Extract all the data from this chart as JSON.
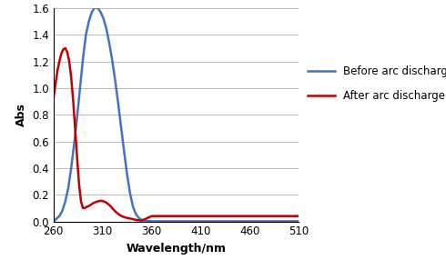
{
  "title": "",
  "xlabel": "Wavelength/nm",
  "ylabel": "Abs",
  "xlim": [
    260,
    510
  ],
  "ylim": [
    0,
    1.6
  ],
  "yticks": [
    0,
    0.2,
    0.4,
    0.6,
    0.8,
    1.0,
    1.2,
    1.4,
    1.6
  ],
  "xticks": [
    260,
    310,
    360,
    410,
    460,
    510
  ],
  "blue_color": "#4472C4",
  "red_color": "#C00000",
  "legend": [
    "Before arc discharge",
    "After arc discharge"
  ],
  "blue_x": [
    260,
    263,
    266,
    269,
    272,
    275,
    278,
    281,
    284,
    287,
    290,
    293,
    296,
    299,
    302,
    305,
    308,
    311,
    314,
    317,
    320,
    323,
    326,
    329,
    332,
    335,
    338,
    341,
    344,
    347,
    350,
    353,
    356,
    360,
    370,
    380,
    510
  ],
  "blue_y": [
    0.0,
    0.02,
    0.04,
    0.08,
    0.15,
    0.25,
    0.4,
    0.58,
    0.78,
    1.0,
    1.22,
    1.4,
    1.5,
    1.57,
    1.605,
    1.6,
    1.57,
    1.52,
    1.44,
    1.33,
    1.2,
    1.05,
    0.88,
    0.7,
    0.52,
    0.35,
    0.21,
    0.11,
    0.055,
    0.025,
    0.012,
    0.006,
    0.003,
    0.001,
    0.001,
    0.001,
    0.001
  ],
  "red_x": [
    260,
    262,
    264,
    266,
    268,
    270,
    272,
    274,
    276,
    278,
    280,
    282,
    284,
    286,
    288,
    290,
    292,
    294,
    296,
    298,
    300,
    303,
    306,
    309,
    312,
    315,
    318,
    321,
    324,
    327,
    330,
    333,
    336,
    339,
    342,
    345,
    350,
    360,
    380,
    510
  ],
  "red_y": [
    0.93,
    1.03,
    1.13,
    1.2,
    1.26,
    1.29,
    1.3,
    1.27,
    1.2,
    1.08,
    0.91,
    0.7,
    0.48,
    0.28,
    0.15,
    0.1,
    0.1,
    0.11,
    0.115,
    0.125,
    0.135,
    0.145,
    0.152,
    0.155,
    0.148,
    0.135,
    0.115,
    0.09,
    0.068,
    0.05,
    0.038,
    0.03,
    0.025,
    0.02,
    0.015,
    0.01,
    0.006,
    0.04,
    0.04,
    0.04
  ]
}
